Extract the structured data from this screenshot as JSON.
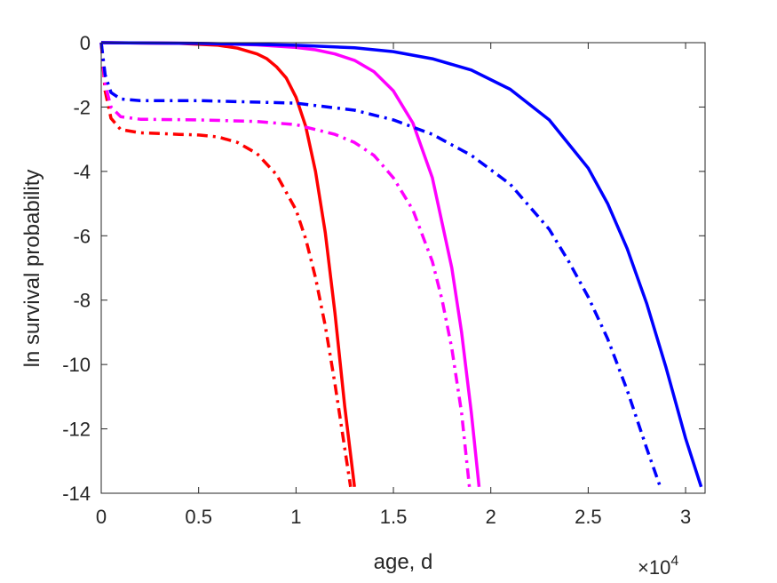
{
  "chart_data": {
    "type": "line",
    "title": "",
    "xlabel": "age, d",
    "ylabel": "ln survival probability",
    "x_multiplier": {
      "base": "10",
      "exponent": "4"
    },
    "xlim": [
      0,
      3.1
    ],
    "ylim": [
      -14,
      0
    ],
    "x_ticks": [
      0,
      0.5,
      1,
      1.5,
      2,
      2.5,
      3
    ],
    "x_tick_labels": [
      "0",
      "0.5",
      "1",
      "1.5",
      "2",
      "2.5",
      "3"
    ],
    "y_ticks": [
      0,
      -2,
      -4,
      -6,
      -8,
      -10,
      -12,
      -14
    ],
    "y_tick_labels": [
      "0",
      "-2",
      "-4",
      "-6",
      "-8",
      "-10",
      "-12",
      "-14"
    ],
    "grid": false,
    "legend": null,
    "series": [
      {
        "color": "#ff0000",
        "style": "solid",
        "x": [
          0,
          0.4,
          0.6,
          0.7,
          0.8,
          0.85,
          0.9,
          0.95,
          1.0,
          1.05,
          1.1,
          1.15,
          1.2,
          1.25,
          1.3
        ],
        "y": [
          0,
          -0.02,
          -0.08,
          -0.17,
          -0.35,
          -0.5,
          -0.75,
          -1.1,
          -1.7,
          -2.6,
          -4.0,
          -5.9,
          -8.4,
          -11.3,
          -13.8
        ]
      },
      {
        "color": "#ff00ff",
        "style": "solid",
        "x": [
          0,
          0.5,
          0.8,
          1.0,
          1.1,
          1.2,
          1.3,
          1.4,
          1.5,
          1.6,
          1.7,
          1.8,
          1.85,
          1.9,
          1.94
        ],
        "y": [
          0,
          -0.02,
          -0.07,
          -0.15,
          -0.22,
          -0.35,
          -0.55,
          -0.9,
          -1.5,
          -2.5,
          -4.2,
          -7.0,
          -9.0,
          -11.5,
          -13.8
        ]
      },
      {
        "color": "#0000ff",
        "style": "solid",
        "x": [
          0,
          0.5,
          1.0,
          1.3,
          1.5,
          1.7,
          1.9,
          2.1,
          2.3,
          2.5,
          2.6,
          2.7,
          2.8,
          2.9,
          3.0,
          3.08
        ],
        "y": [
          0,
          -0.02,
          -0.08,
          -0.16,
          -0.28,
          -0.5,
          -0.85,
          -1.45,
          -2.4,
          -3.9,
          -5.0,
          -6.4,
          -8.1,
          -10.1,
          -12.3,
          -13.8
        ]
      },
      {
        "color": "#ff0000",
        "style": "dashdot",
        "x": [
          0,
          0.02,
          0.05,
          0.1,
          0.2,
          0.4,
          0.5,
          0.6,
          0.7,
          0.8,
          0.9,
          1.0,
          1.05,
          1.1,
          1.15,
          1.2,
          1.25,
          1.28
        ],
        "y": [
          0,
          -1.5,
          -2.35,
          -2.7,
          -2.8,
          -2.85,
          -2.87,
          -2.93,
          -3.1,
          -3.45,
          -4.1,
          -5.2,
          -6.1,
          -7.3,
          -8.8,
          -10.6,
          -12.6,
          -13.8
        ]
      },
      {
        "color": "#ff00ff",
        "style": "dashdot",
        "x": [
          0,
          0.02,
          0.05,
          0.1,
          0.2,
          0.5,
          0.8,
          1.0,
          1.2,
          1.3,
          1.4,
          1.5,
          1.6,
          1.7,
          1.75,
          1.8,
          1.85,
          1.89
        ],
        "y": [
          0,
          -1.3,
          -2.0,
          -2.3,
          -2.38,
          -2.4,
          -2.45,
          -2.55,
          -2.85,
          -3.1,
          -3.5,
          -4.2,
          -5.2,
          -6.8,
          -8.0,
          -9.5,
          -11.5,
          -13.8
        ]
      },
      {
        "color": "#0000ff",
        "style": "dashdot",
        "x": [
          0,
          0.02,
          0.05,
          0.1,
          0.2,
          0.5,
          1.0,
          1.3,
          1.5,
          1.7,
          1.9,
          2.1,
          2.3,
          2.4,
          2.5,
          2.6,
          2.7,
          2.8,
          2.87
        ],
        "y": [
          0,
          -1.0,
          -1.55,
          -1.75,
          -1.8,
          -1.8,
          -1.88,
          -2.1,
          -2.4,
          -2.85,
          -3.5,
          -4.4,
          -5.8,
          -6.8,
          -7.9,
          -9.2,
          -10.8,
          -12.6,
          -13.8
        ]
      }
    ]
  }
}
